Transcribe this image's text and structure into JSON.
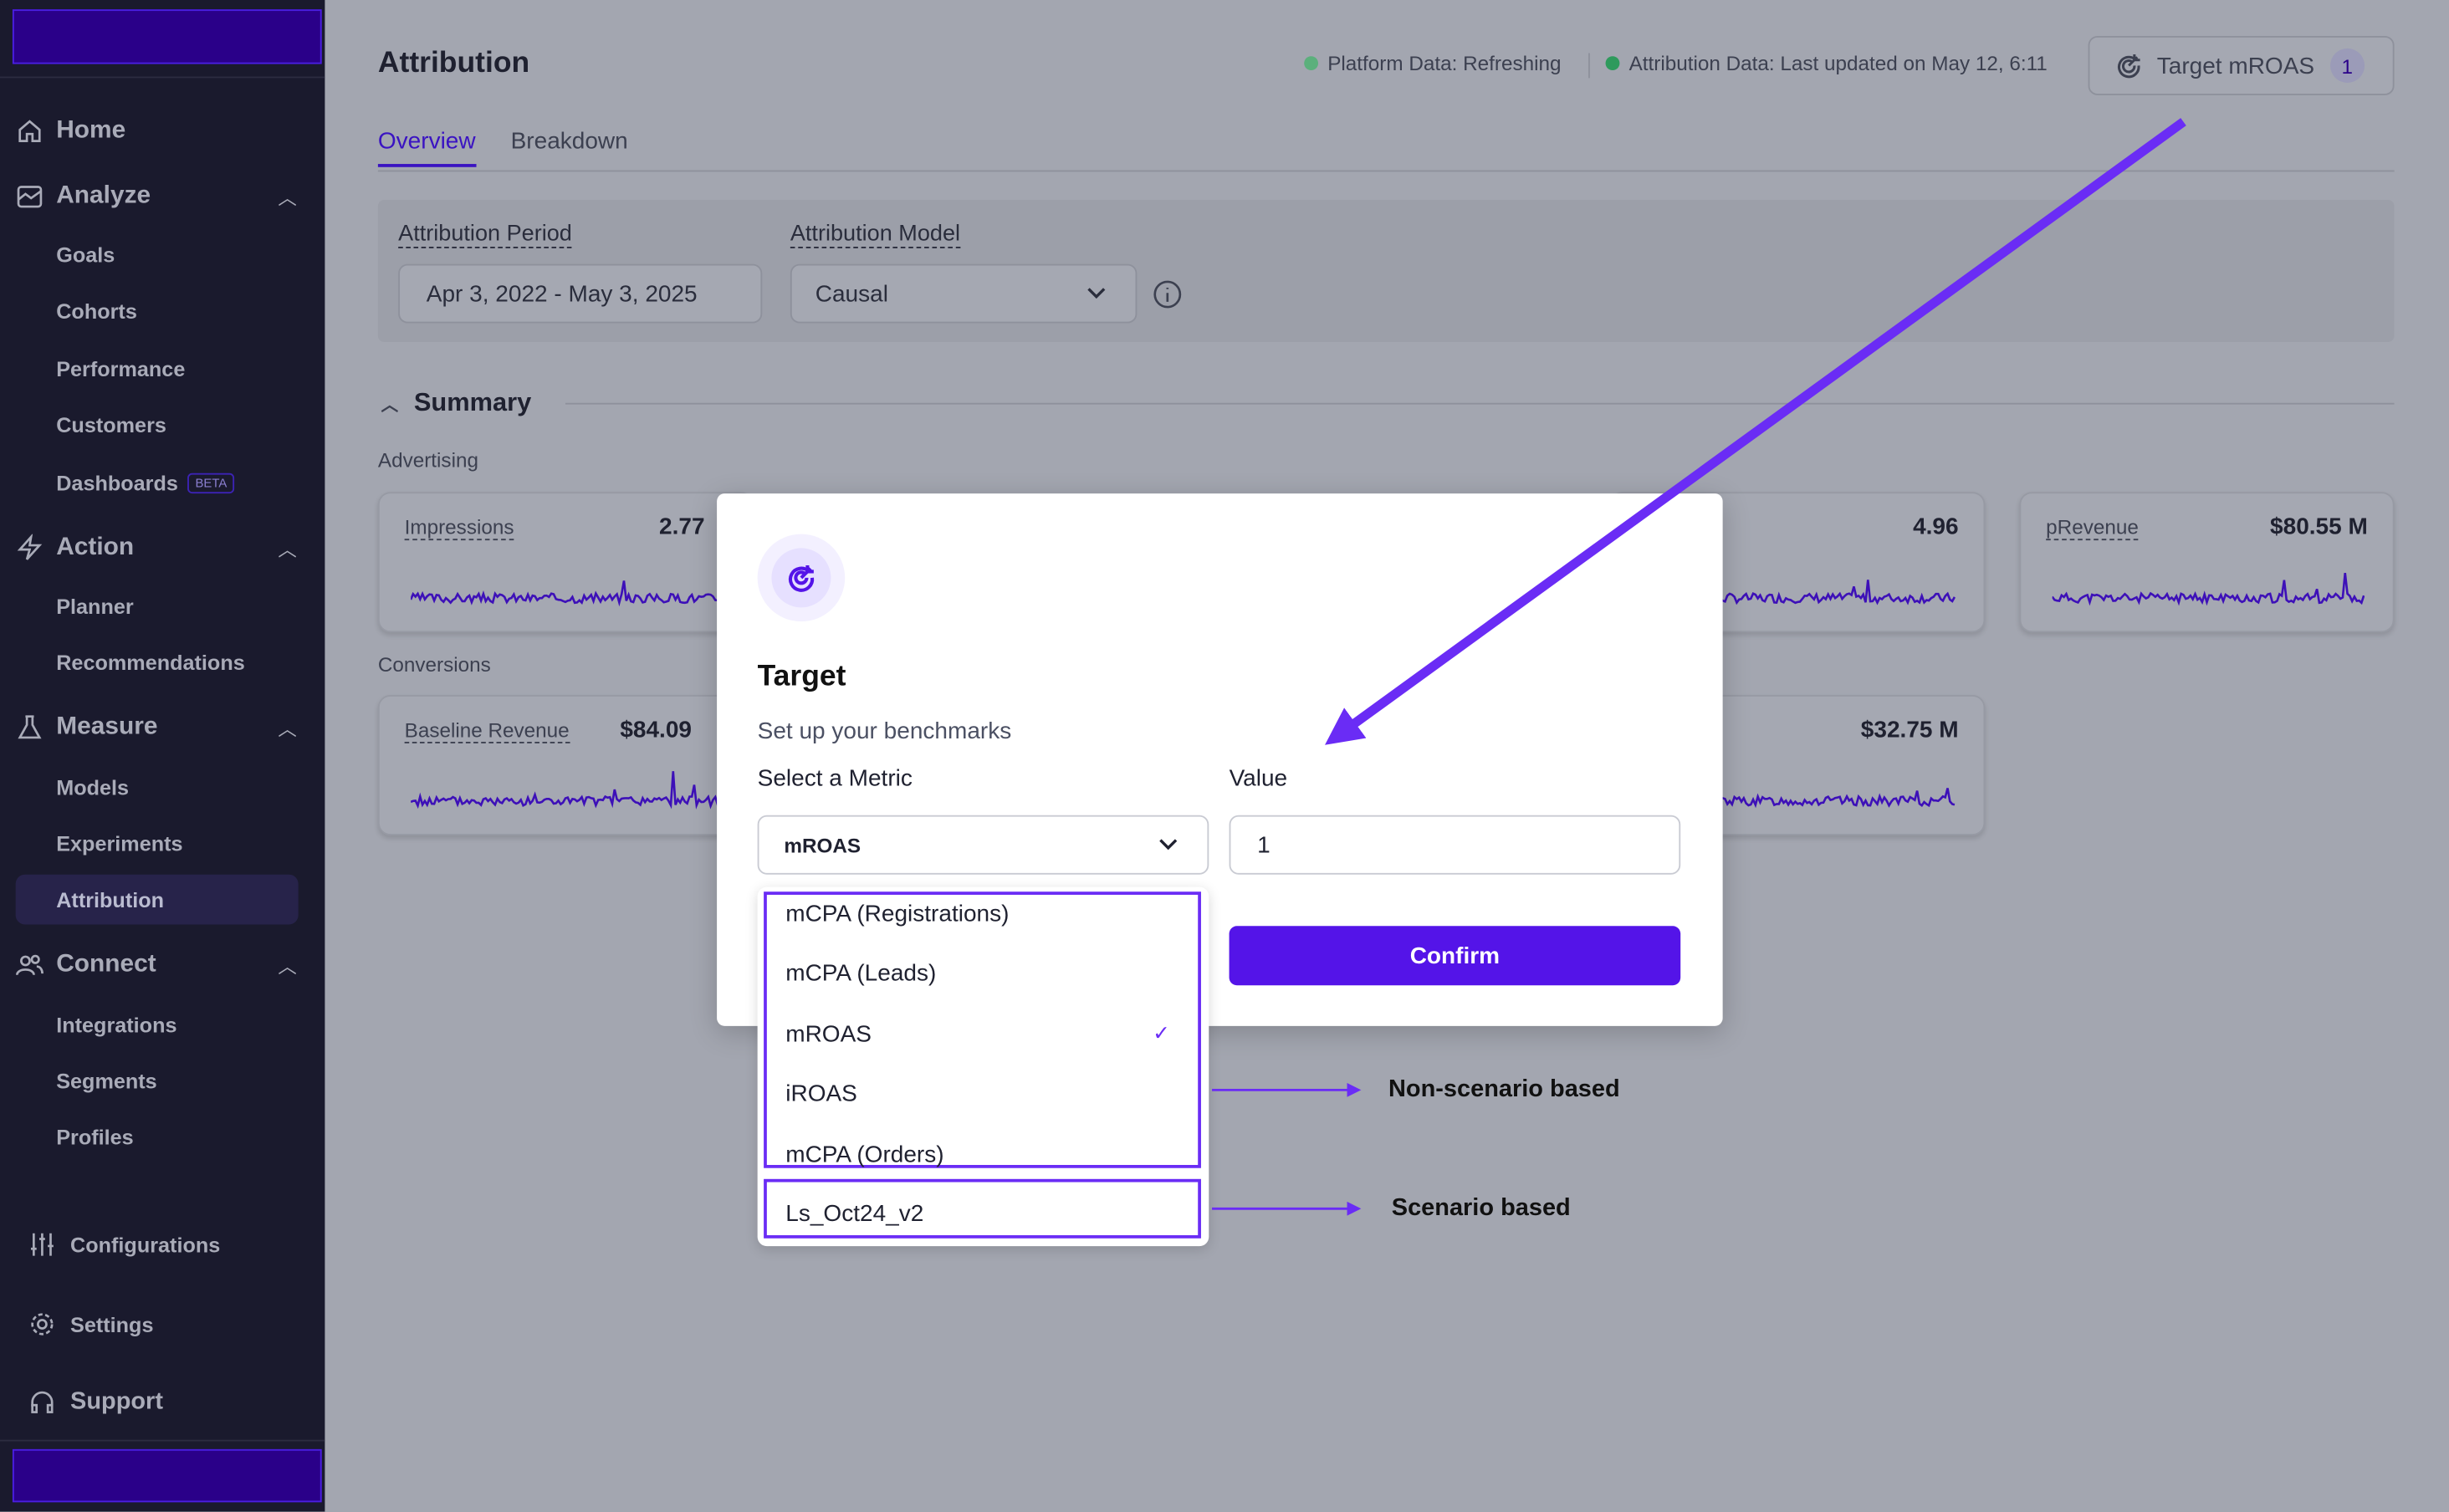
{
  "sidebar": {
    "home": "Home",
    "analyze": {
      "label": "Analyze",
      "items": [
        "Goals",
        "Cohorts",
        "Performance",
        "Customers",
        "Dashboards"
      ],
      "beta": "BETA"
    },
    "action": {
      "label": "Action",
      "items": [
        "Planner",
        "Recommendations"
      ]
    },
    "measure": {
      "label": "Measure",
      "items": [
        "Models",
        "Experiments",
        "Attribution"
      ]
    },
    "connect": {
      "label": "Connect",
      "items": [
        "Integrations",
        "Segments",
        "Profiles"
      ]
    },
    "configurations": "Configurations",
    "settings": "Settings",
    "support": "Support",
    "active_item": "Attribution"
  },
  "header": {
    "title": "Attribution",
    "platform_status": "Platform Data: Refreshing",
    "attribution_status": "Attribution Data: Last updated on May 12, 6:11",
    "target_button": "Target mROAS",
    "target_count": "1"
  },
  "tabs": [
    {
      "label": "Overview",
      "active": true
    },
    {
      "label": "Breakdown",
      "active": false
    }
  ],
  "filters": {
    "period_label": "Attribution Period",
    "period_value": "Apr 3, 2022 - May 3, 2025",
    "model_label": "Attribution Model",
    "model_value": "Causal"
  },
  "summary": {
    "title": "Summary",
    "advertising_label": "Advertising",
    "conversions_label": "Conversions",
    "advertising_cards": [
      {
        "label": "Impressions",
        "value": "2.77"
      },
      {
        "label": "",
        "value": "4.96"
      },
      {
        "label": "pRevenue",
        "value": "$80.55 M"
      }
    ],
    "conversion_cards": [
      {
        "label": "Baseline Revenue",
        "value": "$84.09"
      },
      {
        "label": "",
        "value": "$32.75 M"
      }
    ]
  },
  "modal": {
    "title": "Target",
    "subtitle": "Set up your benchmarks",
    "metric_label": "Select a Metric",
    "metric_value": "mROAS",
    "value_label": "Value",
    "value": "1",
    "confirm": "Confirm",
    "options": [
      "mCPA (Registrations)",
      "mCPA (Leads)",
      "mROAS",
      "iROAS",
      "mCPA (Orders)"
    ],
    "scenario_options": [
      "Ls_Oct24_v2"
    ],
    "selected": "mROAS"
  },
  "annotations": {
    "non_scenario": "Non-scenario based",
    "scenario": "Scenario based"
  },
  "colors": {
    "accent": "#5414e8",
    "annotation": "#6a2cf5",
    "sidebar": "#1a1a2d",
    "status_ok": "#2e9a5c",
    "sparkline": "#3d10b8"
  }
}
